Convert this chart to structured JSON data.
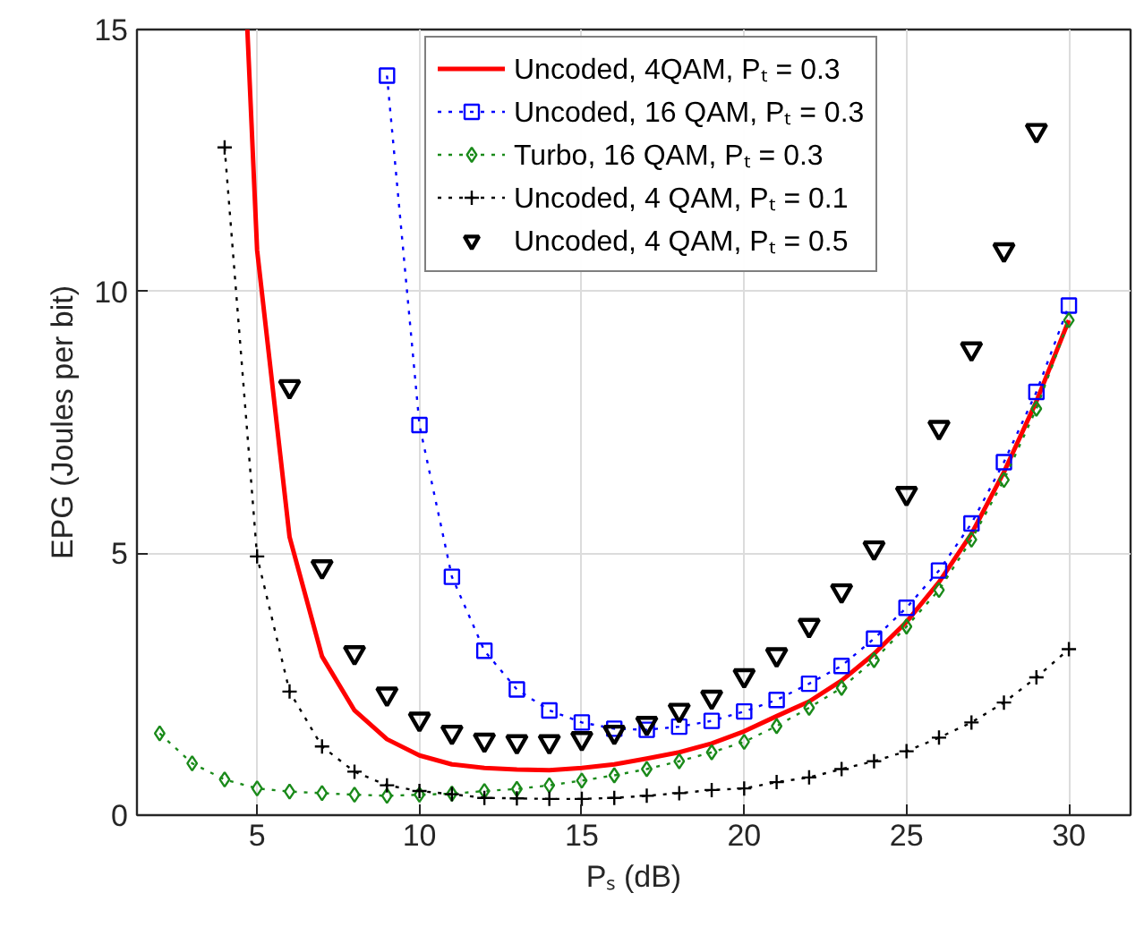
{
  "chart_data": {
    "type": "line",
    "xlabel": "Pₛ (dB)",
    "ylabel": "EPG (Joules per bit)",
    "xlim": [
      1.3,
      31.9
    ],
    "ylim": [
      0,
      15
    ],
    "xticks": [
      5,
      10,
      15,
      20,
      25,
      30
    ],
    "yticks": [
      0,
      5,
      10,
      15
    ],
    "grid": true,
    "legend": "top right",
    "series": [
      {
        "name": "Uncoded, 4QAM, Pₜ = 0.3",
        "color": "#ff0000",
        "marker": "none",
        "line_style": "solid",
        "x": [
          4.7,
          5,
          6,
          7,
          8,
          9,
          10,
          11,
          12,
          13,
          14,
          15,
          16,
          17,
          18,
          19,
          20,
          21,
          22,
          23,
          24,
          25,
          26,
          27,
          28,
          29,
          30
        ],
        "values": [
          15,
          10.79,
          5.31,
          3.03,
          2.0,
          1.45,
          1.14,
          0.97,
          0.9,
          0.87,
          0.86,
          0.9,
          0.97,
          1.08,
          1.2,
          1.37,
          1.6,
          1.89,
          2.17,
          2.57,
          3.08,
          3.69,
          4.45,
          5.37,
          6.55,
          7.9,
          9.45
        ]
      },
      {
        "name": "Uncoded, 16 QAM, Pₜ = 0.3",
        "color": "#0000ff",
        "marker": "square",
        "line_style": "dotted",
        "x": [
          9,
          10,
          11,
          12,
          13,
          14,
          15,
          16,
          17,
          18,
          19,
          20,
          21,
          22,
          23,
          24,
          25,
          26,
          27,
          28,
          29,
          30
        ],
        "values": [
          14.12,
          7.45,
          4.55,
          3.14,
          2.4,
          2.0,
          1.77,
          1.65,
          1.63,
          1.69,
          1.8,
          1.98,
          2.2,
          2.51,
          2.85,
          3.37,
          3.96,
          4.67,
          5.57,
          6.74,
          8.08,
          9.73
        ]
      },
      {
        "name": "Turbo, 16 QAM, Pₜ = 0.3",
        "color": "#1a8a1a",
        "marker": "diamond",
        "line_style": "dotted",
        "x": [
          2,
          3,
          4,
          5,
          6,
          7,
          8,
          9,
          10,
          11,
          12,
          13,
          14,
          15,
          16,
          17,
          18,
          19,
          20,
          21,
          22,
          23,
          24,
          25,
          26,
          27,
          28,
          29,
          30
        ],
        "values": [
          1.56,
          0.99,
          0.68,
          0.51,
          0.45,
          0.42,
          0.39,
          0.37,
          0.39,
          0.41,
          0.46,
          0.5,
          0.57,
          0.66,
          0.76,
          0.88,
          1.03,
          1.2,
          1.4,
          1.7,
          2.05,
          2.43,
          2.96,
          3.6,
          4.3,
          5.26,
          6.4,
          7.76,
          9.45
        ]
      },
      {
        "name": "Uncoded, 4 QAM, Pₜ = 0.1",
        "color": "#000000",
        "marker": "cross",
        "line_style": "dotted",
        "x": [
          4,
          5,
          6,
          7,
          8,
          9,
          10,
          11,
          12,
          13,
          14,
          15,
          16,
          17,
          18,
          19,
          20,
          21,
          22,
          23,
          24,
          25,
          26,
          27,
          28,
          29,
          30
        ],
        "values": [
          12.75,
          4.94,
          2.36,
          1.31,
          0.83,
          0.57,
          0.46,
          0.4,
          0.33,
          0.32,
          0.31,
          0.31,
          0.33,
          0.37,
          0.42,
          0.48,
          0.51,
          0.63,
          0.72,
          0.88,
          1.03,
          1.22,
          1.48,
          1.77,
          2.15,
          2.63,
          3.17
        ]
      },
      {
        "name": "Uncoded, 4 QAM, Pₜ = 0.5",
        "color": "#000000",
        "type": "scatter",
        "marker": "triangle",
        "x": [
          6,
          7,
          8,
          9,
          10,
          11,
          12,
          13,
          14,
          15,
          16,
          17,
          18,
          19,
          20,
          21,
          22,
          23,
          24,
          25,
          26,
          27,
          28,
          29
        ],
        "values": [
          8.18,
          4.74,
          3.1,
          2.31,
          1.83,
          1.58,
          1.43,
          1.4,
          1.4,
          1.46,
          1.58,
          1.75,
          2.0,
          2.25,
          2.66,
          3.06,
          3.62,
          4.28,
          5.1,
          6.14,
          7.4,
          8.9,
          10.79,
          13.07
        ]
      }
    ]
  }
}
